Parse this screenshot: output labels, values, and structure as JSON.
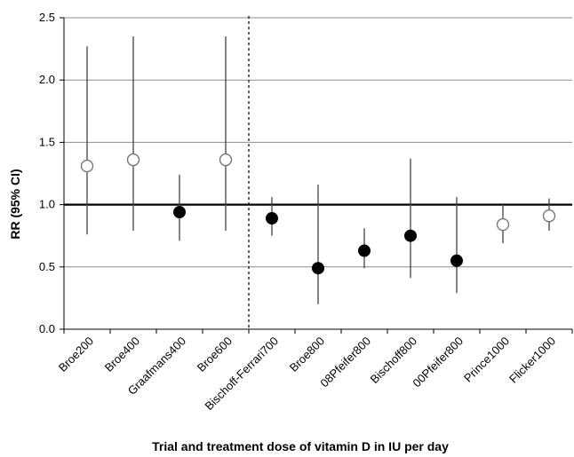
{
  "chart_data": {
    "type": "scatter",
    "xlabel": "Trial and treatment dose of vitamin D in IU per day",
    "ylabel": "RR (95% CI)",
    "ylim": [
      0,
      2.5
    ],
    "y_ticks": [
      "0.0",
      "0.5",
      "1.0",
      "1.5",
      "2.0",
      "2.5"
    ],
    "grid": true,
    "reference_line": 1.0,
    "separator_after_category": "Broe600",
    "categories": [
      "Broe200",
      "Broe400",
      "Graafmans400",
      "Broe600",
      "Bischoff-Ferrari700",
      "Broe800",
      "08Pfeifer800",
      "Bischoff800",
      "00Pfeifer800",
      "Prince1000",
      "Flicker1000"
    ],
    "points": [
      {
        "trial": "Broe200",
        "rr": 1.31,
        "lower": 0.76,
        "upper": 2.27,
        "marker": "open"
      },
      {
        "trial": "Broe400",
        "rr": 1.36,
        "lower": 0.79,
        "upper": 2.35,
        "marker": "open"
      },
      {
        "trial": "Graafmans400",
        "rr": 0.94,
        "lower": 0.71,
        "upper": 1.24,
        "marker": "filled"
      },
      {
        "trial": "Broe600",
        "rr": 1.36,
        "lower": 0.79,
        "upper": 2.35,
        "marker": "open"
      },
      {
        "trial": "Bischoff-Ferrari700",
        "rr": 0.89,
        "lower": 0.75,
        "upper": 1.06,
        "marker": "filled"
      },
      {
        "trial": "Broe800",
        "rr": 0.49,
        "lower": 0.2,
        "upper": 1.16,
        "marker": "filled"
      },
      {
        "trial": "08Pfeifer800",
        "rr": 0.63,
        "lower": 0.49,
        "upper": 0.81,
        "marker": "filled"
      },
      {
        "trial": "Bischoff800",
        "rr": 0.75,
        "lower": 0.41,
        "upper": 1.37,
        "marker": "filled"
      },
      {
        "trial": "00Pfeifer800",
        "rr": 0.55,
        "lower": 0.29,
        "upper": 1.06,
        "marker": "filled"
      },
      {
        "trial": "Prince1000",
        "rr": 0.84,
        "lower": 0.69,
        "upper": 1.01,
        "marker": "open"
      },
      {
        "trial": "Flicker1000",
        "rr": 0.91,
        "lower": 0.79,
        "upper": 1.05,
        "marker": "open"
      }
    ]
  }
}
